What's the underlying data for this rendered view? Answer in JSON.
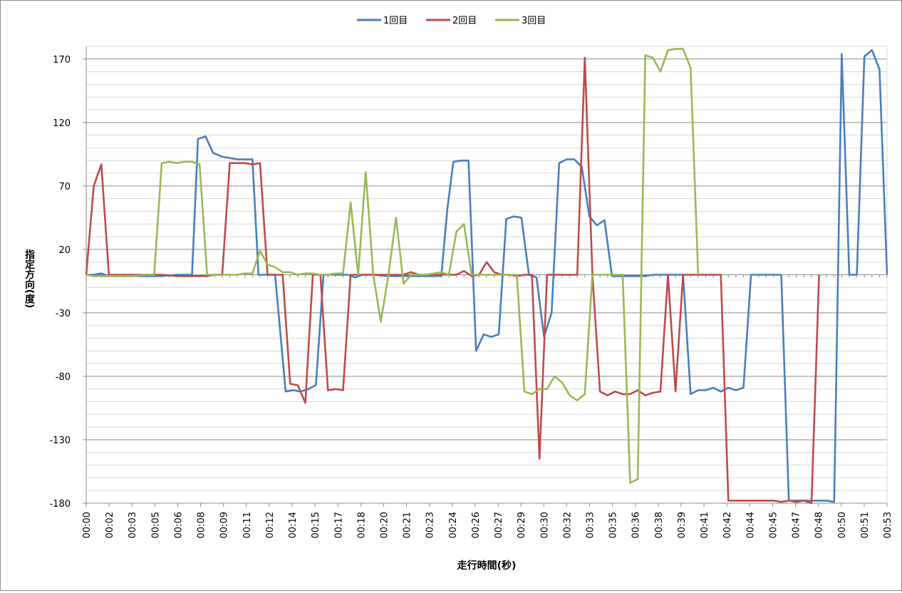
{
  "chart_data": {
    "type": "line",
    "xlabel": "走行時間(秒)",
    "ylabel": "指定方向(度)",
    "ylim": [
      -180,
      170
    ],
    "y_ticks": [
      170,
      120,
      70,
      20,
      -30,
      -80,
      -130,
      -180
    ],
    "x_ticks": [
      "00:00",
      "00:02",
      "00:03",
      "00:05",
      "00:06",
      "00:08",
      "00:09",
      "00:11",
      "00:12",
      "00:14",
      "00:15",
      "00:17",
      "00:18",
      "00:20",
      "00:21",
      "00:23",
      "00:24",
      "00:26",
      "00:27",
      "00:29",
      "00:30",
      "00:32",
      "00:33",
      "00:35",
      "00:36",
      "00:38",
      "00:39",
      "00:41",
      "00:42",
      "00:44",
      "00:45",
      "00:47",
      "00:48",
      "00:50",
      "00:51",
      "00:53"
    ],
    "x_range_seconds": [
      0,
      53
    ],
    "grid": "horizontal major and minor gridlines",
    "legend_position": "top",
    "series": [
      {
        "name": "1回目",
        "color": "#4a7ebb",
        "points": [
          [
            0,
            0
          ],
          [
            0.5,
            0
          ],
          [
            1,
            1
          ],
          [
            1.5,
            -1
          ],
          [
            2,
            -1
          ],
          [
            3,
            -1
          ],
          [
            4,
            -1
          ],
          [
            5,
            -1
          ],
          [
            6,
            0
          ],
          [
            6.5,
            0
          ],
          [
            7,
            0
          ],
          [
            7.4,
            107
          ],
          [
            7.9,
            109
          ],
          [
            8.4,
            96
          ],
          [
            9,
            93
          ],
          [
            9.5,
            92
          ],
          [
            10,
            91
          ],
          [
            10.5,
            91
          ],
          [
            11,
            91
          ],
          [
            11.4,
            0
          ],
          [
            12,
            0
          ],
          [
            12.5,
            0
          ],
          [
            13.2,
            -92
          ],
          [
            13.7,
            -91
          ],
          [
            14.2,
            -92
          ],
          [
            14.7,
            -90
          ],
          [
            15.2,
            -87
          ],
          [
            15.7,
            0
          ],
          [
            16.5,
            0
          ],
          [
            17.3,
            0
          ],
          [
            17.8,
            -2
          ],
          [
            18.3,
            0
          ],
          [
            19,
            0
          ],
          [
            20,
            -1
          ],
          [
            21,
            -1
          ],
          [
            22,
            -1
          ],
          [
            23,
            -1
          ],
          [
            23.5,
            -1
          ],
          [
            23.9,
            52
          ],
          [
            24.3,
            89
          ],
          [
            24.8,
            90
          ],
          [
            25.3,
            90
          ],
          [
            25.8,
            -60
          ],
          [
            26.3,
            -47
          ],
          [
            26.8,
            -49
          ],
          [
            27.3,
            -47
          ],
          [
            27.8,
            44
          ],
          [
            28.3,
            46
          ],
          [
            28.8,
            45
          ],
          [
            29.3,
            0
          ],
          [
            29.8,
            -2
          ],
          [
            30.3,
            -49
          ],
          [
            30.8,
            -30
          ],
          [
            31.3,
            88
          ],
          [
            31.8,
            91
          ],
          [
            32.3,
            91
          ],
          [
            32.8,
            85
          ],
          [
            33.3,
            46
          ],
          [
            33.8,
            39
          ],
          [
            34.3,
            43
          ],
          [
            34.8,
            -1
          ],
          [
            35.5,
            -1
          ],
          [
            36,
            -1
          ],
          [
            37,
            -1
          ],
          [
            37.5,
            0
          ],
          [
            38,
            0
          ],
          [
            38.5,
            0
          ],
          [
            39,
            0
          ],
          [
            39.5,
            0
          ],
          [
            40,
            -94
          ],
          [
            40.5,
            -91
          ],
          [
            41,
            -91
          ],
          [
            41.5,
            -89
          ],
          [
            42,
            -92
          ],
          [
            42.5,
            -89
          ],
          [
            43,
            -91
          ],
          [
            43.5,
            -89
          ],
          [
            44,
            0
          ],
          [
            44.5,
            0
          ],
          [
            45,
            0
          ],
          [
            45.5,
            0
          ],
          [
            46,
            0
          ],
          [
            46.5,
            -178
          ],
          [
            47,
            -178
          ],
          [
            47.5,
            -178
          ],
          [
            48,
            -178
          ],
          [
            48.5,
            -178
          ],
          [
            49,
            -178
          ],
          [
            49.5,
            -179
          ],
          [
            50,
            174
          ],
          [
            50.5,
            0
          ],
          [
            51,
            0
          ],
          [
            51.5,
            172
          ],
          [
            52,
            177
          ],
          [
            52.5,
            162
          ],
          [
            53,
            0
          ]
        ]
      },
      {
        "name": "2回目",
        "color": "#be4b48",
        "points": [
          [
            0,
            0
          ],
          [
            0.5,
            70
          ],
          [
            1,
            87
          ],
          [
            1.5,
            0
          ],
          [
            2,
            0
          ],
          [
            3,
            0
          ],
          [
            4,
            0
          ],
          [
            5,
            0
          ],
          [
            6,
            -1
          ],
          [
            7,
            -1
          ],
          [
            8,
            -1
          ],
          [
            8.5,
            0
          ],
          [
            9,
            0
          ],
          [
            9.5,
            88
          ],
          [
            10,
            88
          ],
          [
            10.5,
            88
          ],
          [
            11,
            87
          ],
          [
            11.5,
            88
          ],
          [
            12,
            0
          ],
          [
            12.5,
            0
          ],
          [
            13,
            0
          ],
          [
            13.5,
            -86
          ],
          [
            14,
            -87
          ],
          [
            14.5,
            -101
          ],
          [
            15,
            0
          ],
          [
            15.5,
            0
          ],
          [
            16,
            -91
          ],
          [
            16.5,
            -90
          ],
          [
            17,
            -91
          ],
          [
            17.5,
            0
          ],
          [
            18,
            0
          ],
          [
            19,
            0
          ],
          [
            20,
            0
          ],
          [
            21,
            0
          ],
          [
            21.5,
            2
          ],
          [
            22,
            0
          ],
          [
            22.5,
            0
          ],
          [
            23,
            0
          ],
          [
            23.5,
            0
          ],
          [
            24,
            0
          ],
          [
            24.5,
            0
          ],
          [
            25,
            3
          ],
          [
            25.5,
            -1
          ],
          [
            26,
            0
          ],
          [
            26.5,
            10
          ],
          [
            27,
            2
          ],
          [
            27.5,
            0
          ],
          [
            28,
            0
          ],
          [
            28.5,
            -1
          ],
          [
            29,
            0
          ],
          [
            29.5,
            0
          ],
          [
            30,
            -145
          ],
          [
            30.5,
            0
          ],
          [
            31,
            0
          ],
          [
            31.5,
            0
          ],
          [
            32,
            0
          ],
          [
            32.5,
            0
          ],
          [
            33,
            171
          ],
          [
            33.5,
            0
          ],
          [
            34,
            -92
          ],
          [
            34.5,
            -95
          ],
          [
            35,
            -92
          ],
          [
            35.5,
            -94
          ],
          [
            36,
            -94
          ],
          [
            36.5,
            -91
          ],
          [
            37,
            -95
          ],
          [
            37.5,
            -93
          ],
          [
            38,
            -92
          ],
          [
            38.5,
            0
          ],
          [
            39,
            -92
          ],
          [
            39.5,
            0
          ],
          [
            40,
            0
          ],
          [
            40.5,
            0
          ],
          [
            41,
            0
          ],
          [
            41.5,
            0
          ],
          [
            42,
            0
          ],
          [
            42.5,
            -178
          ],
          [
            43,
            -178
          ],
          [
            43.5,
            -178
          ],
          [
            44,
            -178
          ],
          [
            44.5,
            -178
          ],
          [
            45,
            -178
          ],
          [
            45.5,
            -178
          ],
          [
            46,
            -179
          ],
          [
            46.5,
            -178
          ],
          [
            47,
            -179
          ],
          [
            47.5,
            -178
          ],
          [
            48,
            -180
          ],
          [
            48.5,
            0
          ]
        ]
      },
      {
        "name": "3回目",
        "color": "#98b954",
        "points": [
          [
            0,
            0
          ],
          [
            0.5,
            -1
          ],
          [
            1,
            -1
          ],
          [
            2,
            -1
          ],
          [
            3,
            -1
          ],
          [
            4,
            0
          ],
          [
            4.5,
            0
          ],
          [
            5,
            88
          ],
          [
            5.5,
            89
          ],
          [
            6,
            88
          ],
          [
            6.5,
            89
          ],
          [
            7,
            89
          ],
          [
            7.5,
            87
          ],
          [
            8,
            0
          ],
          [
            8.5,
            0
          ],
          [
            9,
            0
          ],
          [
            9.5,
            0
          ],
          [
            10,
            0
          ],
          [
            10.5,
            1
          ],
          [
            11,
            1
          ],
          [
            11.5,
            19
          ],
          [
            12,
            8
          ],
          [
            12.5,
            6
          ],
          [
            13,
            2
          ],
          [
            13.5,
            2
          ],
          [
            14,
            0
          ],
          [
            14.5,
            1
          ],
          [
            15,
            1
          ],
          [
            15.5,
            0
          ],
          [
            16,
            0
          ],
          [
            16.5,
            1
          ],
          [
            17,
            1
          ],
          [
            17.5,
            57
          ],
          [
            18,
            0
          ],
          [
            18.5,
            81
          ],
          [
            19,
            0
          ],
          [
            19.5,
            -37
          ],
          [
            20,
            0
          ],
          [
            20.5,
            45
          ],
          [
            21,
            -7
          ],
          [
            21.5,
            0
          ],
          [
            22,
            0
          ],
          [
            22.5,
            0
          ],
          [
            23,
            1
          ],
          [
            23.5,
            2
          ],
          [
            24,
            0
          ],
          [
            24.5,
            34
          ],
          [
            25,
            40
          ],
          [
            25.5,
            0
          ],
          [
            26,
            0
          ],
          [
            26.5,
            0
          ],
          [
            27,
            0
          ],
          [
            27.5,
            0
          ],
          [
            28,
            0
          ],
          [
            28.5,
            0
          ],
          [
            29,
            -92
          ],
          [
            29.5,
            -94
          ],
          [
            30,
            -90
          ],
          [
            30.5,
            -90
          ],
          [
            31,
            -80
          ],
          [
            31.5,
            -85
          ],
          [
            32,
            -95
          ],
          [
            32.5,
            -99
          ],
          [
            33,
            -94
          ],
          [
            33.5,
            0
          ],
          [
            34,
            0
          ],
          [
            34.5,
            0
          ],
          [
            35,
            0
          ],
          [
            35.5,
            0
          ],
          [
            36,
            -164
          ],
          [
            36.5,
            -161
          ],
          [
            37,
            173
          ],
          [
            37.5,
            171
          ],
          [
            38,
            160
          ],
          [
            38.5,
            177
          ],
          [
            39,
            178
          ],
          [
            39.5,
            178
          ],
          [
            40,
            163
          ],
          [
            40.5,
            0
          ]
        ]
      }
    ]
  }
}
